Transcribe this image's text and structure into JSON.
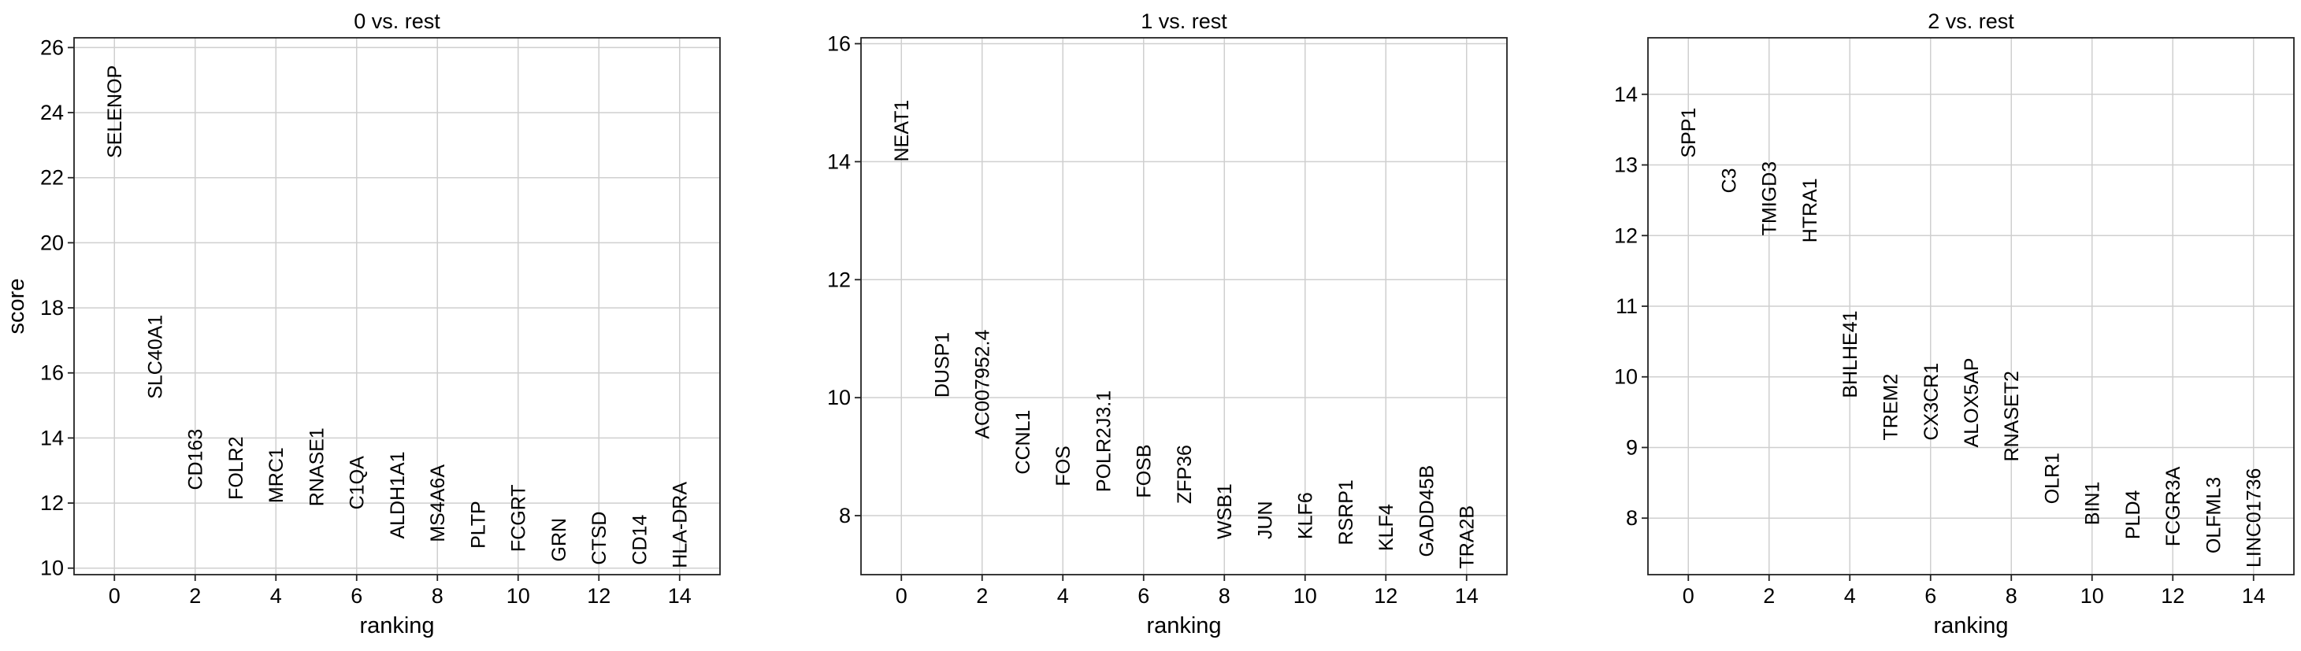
{
  "chart_data": [
    {
      "type": "scatter",
      "title": "0 vs. rest",
      "xlabel": "ranking",
      "ylabel": "score",
      "xlim": [
        -1,
        15
      ],
      "ylim": [
        9.8,
        26.3
      ],
      "xticks": [
        0,
        2,
        4,
        6,
        8,
        10,
        12,
        14
      ],
      "yticks": [
        10,
        12,
        14,
        16,
        18,
        20,
        22,
        24,
        26
      ],
      "grid": true,
      "points": [
        {
          "rank": 0,
          "gene": "SELENOP",
          "score": 22.6
        },
        {
          "rank": 1,
          "gene": "SLC40A1",
          "score": 15.2
        },
        {
          "rank": 2,
          "gene": "CD163",
          "score": 12.4
        },
        {
          "rank": 3,
          "gene": "FOLR2",
          "score": 12.1
        },
        {
          "rank": 4,
          "gene": "MRC1",
          "score": 12.0
        },
        {
          "rank": 5,
          "gene": "RNASE1",
          "score": 11.9
        },
        {
          "rank": 6,
          "gene": "C1QA",
          "score": 11.8
        },
        {
          "rank": 7,
          "gene": "ALDH1A1",
          "score": 10.9
        },
        {
          "rank": 8,
          "gene": "MS4A6A",
          "score": 10.8
        },
        {
          "rank": 9,
          "gene": "PLTP",
          "score": 10.6
        },
        {
          "rank": 10,
          "gene": "FCGRT",
          "score": 10.5
        },
        {
          "rank": 11,
          "gene": "GRN",
          "score": 10.2
        },
        {
          "rank": 12,
          "gene": "CTSD",
          "score": 10.1
        },
        {
          "rank": 13,
          "gene": "CD14",
          "score": 10.1
        },
        {
          "rank": 14,
          "gene": "HLA-DRA",
          "score": 10.0
        }
      ]
    },
    {
      "type": "scatter",
      "title": "1 vs. rest",
      "xlabel": "ranking",
      "ylabel": "",
      "xlim": [
        -1,
        15
      ],
      "ylim": [
        7.0,
        16.1
      ],
      "xticks": [
        0,
        2,
        4,
        6,
        8,
        10,
        12,
        14
      ],
      "yticks": [
        8,
        10,
        12,
        14,
        16
      ],
      "grid": true,
      "points": [
        {
          "rank": 0,
          "gene": "NEAT1",
          "score": 14.0
        },
        {
          "rank": 1,
          "gene": "DUSP1",
          "score": 10.0
        },
        {
          "rank": 2,
          "gene": "AC007952.4",
          "score": 9.3
        },
        {
          "rank": 3,
          "gene": "CCNL1",
          "score": 8.7
        },
        {
          "rank": 4,
          "gene": "FOS",
          "score": 8.5
        },
        {
          "rank": 5,
          "gene": "POLR2J3.1",
          "score": 8.4
        },
        {
          "rank": 6,
          "gene": "FOSB",
          "score": 8.3
        },
        {
          "rank": 7,
          "gene": "ZFP36",
          "score": 8.2
        },
        {
          "rank": 8,
          "gene": "WSB1",
          "score": 7.6
        },
        {
          "rank": 9,
          "gene": "JUN",
          "score": 7.6
        },
        {
          "rank": 10,
          "gene": "KLF6",
          "score": 7.6
        },
        {
          "rank": 11,
          "gene": "RSRP1",
          "score": 7.5
        },
        {
          "rank": 12,
          "gene": "KLF4",
          "score": 7.4
        },
        {
          "rank": 13,
          "gene": "GADD45B",
          "score": 7.3
        },
        {
          "rank": 14,
          "gene": "TRA2B",
          "score": 7.1
        }
      ]
    },
    {
      "type": "scatter",
      "title": "2 vs. rest",
      "xlabel": "ranking",
      "ylabel": "",
      "xlim": [
        -1,
        15
      ],
      "ylim": [
        7.2,
        14.8
      ],
      "xticks": [
        0,
        2,
        4,
        6,
        8,
        10,
        12,
        14
      ],
      "yticks": [
        8,
        9,
        10,
        11,
        12,
        13,
        14
      ],
      "grid": true,
      "points": [
        {
          "rank": 0,
          "gene": "SPP1",
          "score": 13.1
        },
        {
          "rank": 1,
          "gene": "C3",
          "score": 12.6
        },
        {
          "rank": 2,
          "gene": "TMIGD3",
          "score": 12.0
        },
        {
          "rank": 3,
          "gene": "HTRA1",
          "score": 11.9
        },
        {
          "rank": 4,
          "gene": "BHLHE41",
          "score": 9.7
        },
        {
          "rank": 5,
          "gene": "TREM2",
          "score": 9.1
        },
        {
          "rank": 6,
          "gene": "CX3CR1",
          "score": 9.1
        },
        {
          "rank": 7,
          "gene": "ALOX5AP",
          "score": 9.0
        },
        {
          "rank": 8,
          "gene": "RNASET2",
          "score": 8.8
        },
        {
          "rank": 9,
          "gene": "OLR1",
          "score": 8.2
        },
        {
          "rank": 10,
          "gene": "BIN1",
          "score": 7.9
        },
        {
          "rank": 11,
          "gene": "PLD4",
          "score": 7.7
        },
        {
          "rank": 12,
          "gene": "FCGR3A",
          "score": 7.6
        },
        {
          "rank": 13,
          "gene": "OLFML3",
          "score": 7.5
        },
        {
          "rank": 14,
          "gene": "LINC01736",
          "score": 7.3
        }
      ]
    }
  ]
}
